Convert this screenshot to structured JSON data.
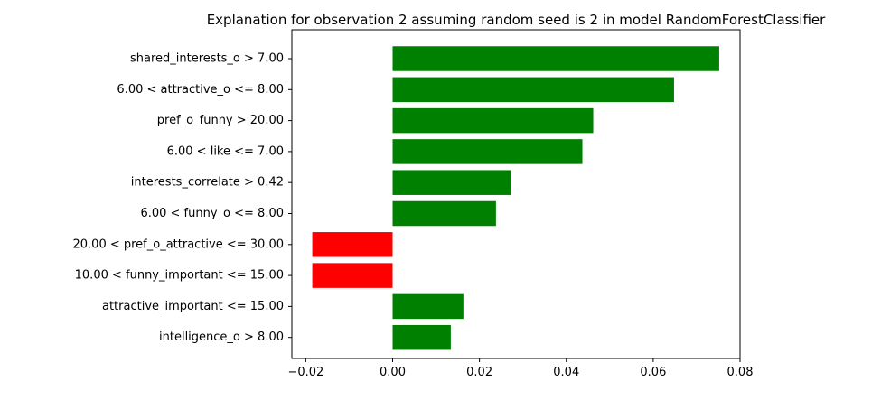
{
  "chart_data": {
    "type": "bar",
    "orientation": "horizontal",
    "title": "Explanation for observation 2 assuming random seed is 2 in model RandomForestClassifier",
    "xlabel": "",
    "ylabel": "",
    "categories": [
      "shared_interests_o > 7.00",
      "6.00 < attractive_o <= 8.00",
      "pref_o_funny > 20.00",
      "6.00 < like <= 7.00",
      "interests_correlate > 0.42",
      "6.00 < funny_o <= 8.00",
      "20.00 < pref_o_attractive <= 30.00",
      "10.00 < funny_important <= 15.00",
      "attractive_important <= 15.00",
      "intelligence_o > 8.00"
    ],
    "values": [
      0.0752,
      0.0648,
      0.0462,
      0.0437,
      0.0273,
      0.0238,
      -0.0185,
      -0.0185,
      0.0163,
      0.0134
    ],
    "xlim": [
      -0.0232,
      0.08
    ],
    "xticks": [
      -0.02,
      0.0,
      0.02,
      0.04,
      0.06,
      0.08
    ],
    "xtick_labels": [
      "−0.02",
      "0.00",
      "0.02",
      "0.04",
      "0.06",
      "0.08"
    ],
    "grid": false,
    "legend": "none",
    "colors": {
      "positive": "#008000",
      "negative": "#ff0000",
      "axes": "#000000"
    }
  }
}
